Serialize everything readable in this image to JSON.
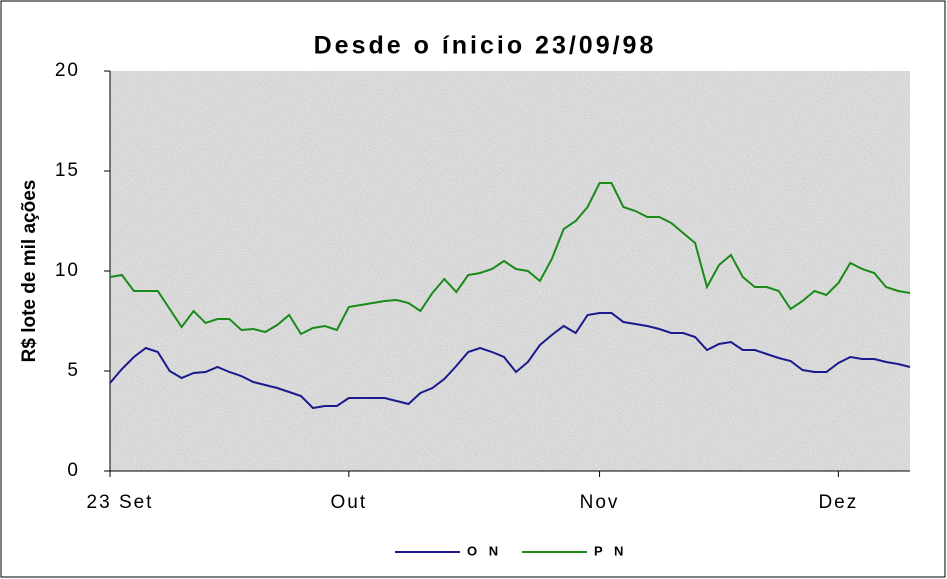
{
  "chart_data": {
    "type": "line",
    "title": "Desde o ínicio 23/09/98",
    "y_label": "R$ lote de mil ações",
    "categories": [
      "23 Set",
      null,
      null,
      null,
      null,
      null,
      null,
      null,
      null,
      null,
      null,
      null,
      null,
      null,
      null,
      null,
      null,
      null,
      null,
      null,
      "Out",
      null,
      null,
      null,
      null,
      null,
      null,
      null,
      null,
      null,
      null,
      null,
      null,
      null,
      null,
      null,
      null,
      null,
      null,
      null,
      null,
      "Nov",
      null,
      null,
      null,
      null,
      null,
      null,
      null,
      null,
      null,
      null,
      null,
      null,
      null,
      null,
      null,
      null,
      null,
      null,
      null,
      "Dez",
      null,
      null,
      null,
      null,
      null,
      null
    ],
    "series": [
      {
        "name": "O N",
        "color": "#1a1a8c",
        "values": [
          4.4,
          5.1,
          5.7,
          6.15,
          5.95,
          5.0,
          4.65,
          4.9,
          4.95,
          5.2,
          4.95,
          4.75,
          4.45,
          4.3,
          4.15,
          3.95,
          3.75,
          3.15,
          3.25,
          3.25,
          3.65,
          3.65,
          3.65,
          3.65,
          3.5,
          3.35,
          3.9,
          4.15,
          4.6,
          5.25,
          5.95,
          6.15,
          5.95,
          5.7,
          4.95,
          5.45,
          6.3,
          6.8,
          7.25,
          6.9,
          7.8,
          7.9,
          7.9,
          7.45,
          7.35,
          7.25,
          7.1,
          6.9,
          6.9,
          6.7,
          6.05,
          6.35,
          6.45,
          6.05,
          6.05,
          5.85,
          5.65,
          5.5,
          5.05,
          4.95,
          4.95,
          5.4,
          5.7,
          5.6,
          5.6,
          5.45,
          5.35,
          5.2
        ]
      },
      {
        "name": "P N",
        "color": "#1a8a1a",
        "values": [
          9.7,
          9.8,
          9.0,
          9.0,
          9.0,
          8.1,
          7.2,
          8.0,
          7.4,
          7.6,
          7.6,
          7.05,
          7.1,
          6.95,
          7.3,
          7.8,
          6.85,
          7.15,
          7.25,
          7.05,
          8.2,
          8.3,
          8.4,
          8.5,
          8.55,
          8.4,
          8.0,
          8.9,
          9.6,
          8.95,
          9.8,
          9.9,
          10.1,
          10.5,
          10.1,
          10.0,
          9.5,
          10.6,
          12.1,
          12.5,
          13.2,
          14.4,
          14.4,
          13.2,
          13.0,
          12.7,
          12.7,
          12.4,
          11.9,
          11.4,
          9.2,
          10.3,
          10.8,
          9.7,
          9.2,
          9.2,
          9.0,
          8.1,
          8.5,
          9.0,
          8.8,
          9.4,
          10.4,
          10.1,
          9.9,
          9.2,
          9.0,
          8.9
        ]
      }
    ],
    "ylim": [
      0,
      20
    ],
    "yticks": [
      0,
      5,
      10,
      15,
      20
    ]
  }
}
